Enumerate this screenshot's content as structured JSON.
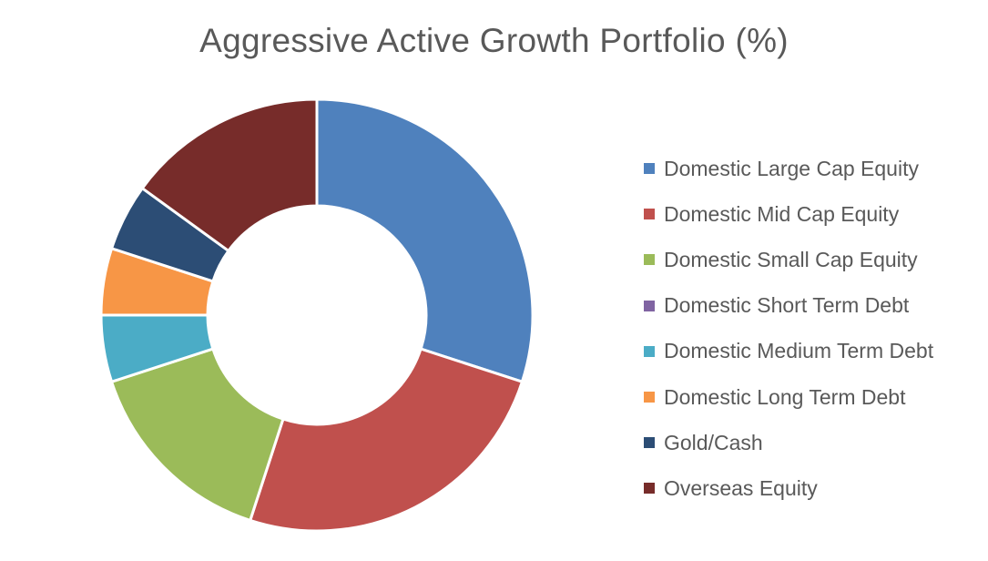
{
  "chart_data": {
    "type": "doughnut",
    "title": "Aggressive Active Growth Portfolio (%)",
    "series": [
      {
        "name": "Domestic Large Cap Equity",
        "value": 30,
        "color": "#4f81bd"
      },
      {
        "name": "Domestic Mid Cap Equity",
        "value": 25,
        "color": "#c0504d"
      },
      {
        "name": "Domestic Small Cap Equity",
        "value": 15,
        "color": "#9bbb59"
      },
      {
        "name": "Domestic Short Term Debt",
        "value": 0,
        "color": "#8064a2"
      },
      {
        "name": "Domestic Medium Term Debt",
        "value": 5,
        "color": "#4bacc6"
      },
      {
        "name": "Domestic Long Term Debt",
        "value": 5,
        "color": "#f79646"
      },
      {
        "name": "Gold/Cash",
        "value": 5,
        "color": "#2c4d75"
      },
      {
        "name": "Overseas Equity",
        "value": 15,
        "color": "#772c2a"
      }
    ],
    "legend_position": "right"
  }
}
